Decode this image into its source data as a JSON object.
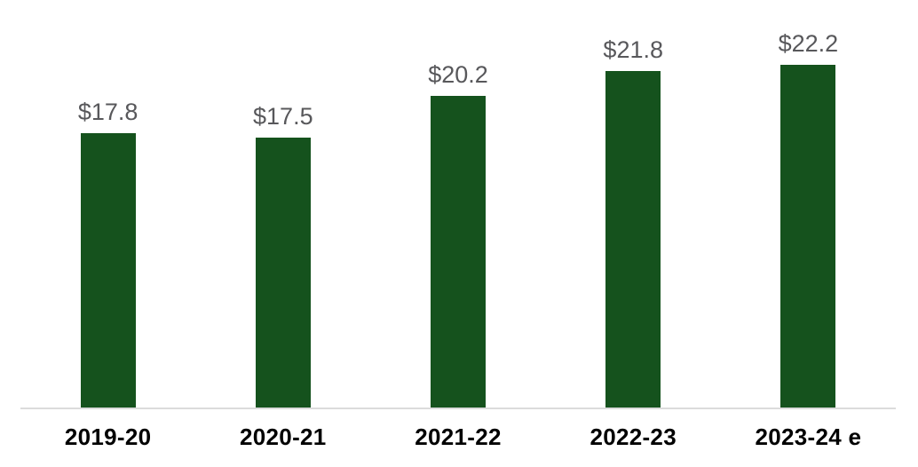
{
  "chart_data": {
    "type": "bar",
    "title": "",
    "categories": [
      "2019-20",
      "2020-21",
      "2021-22",
      "2022-23",
      "2023-24 e"
    ],
    "values": [
      17.8,
      17.5,
      20.2,
      21.8,
      22.2
    ],
    "value_labels": [
      "$17.8",
      "$17.5",
      "$20.2",
      "$21.8",
      "$22.2"
    ],
    "ylim": [
      0,
      26.4
    ],
    "grid": false,
    "legend": false,
    "colors": {
      "bar": "#15521D",
      "value_label": "#58585B",
      "category_label": "#000000",
      "axis_line": "#DBDBDB",
      "background": "#FFFFFF"
    }
  }
}
